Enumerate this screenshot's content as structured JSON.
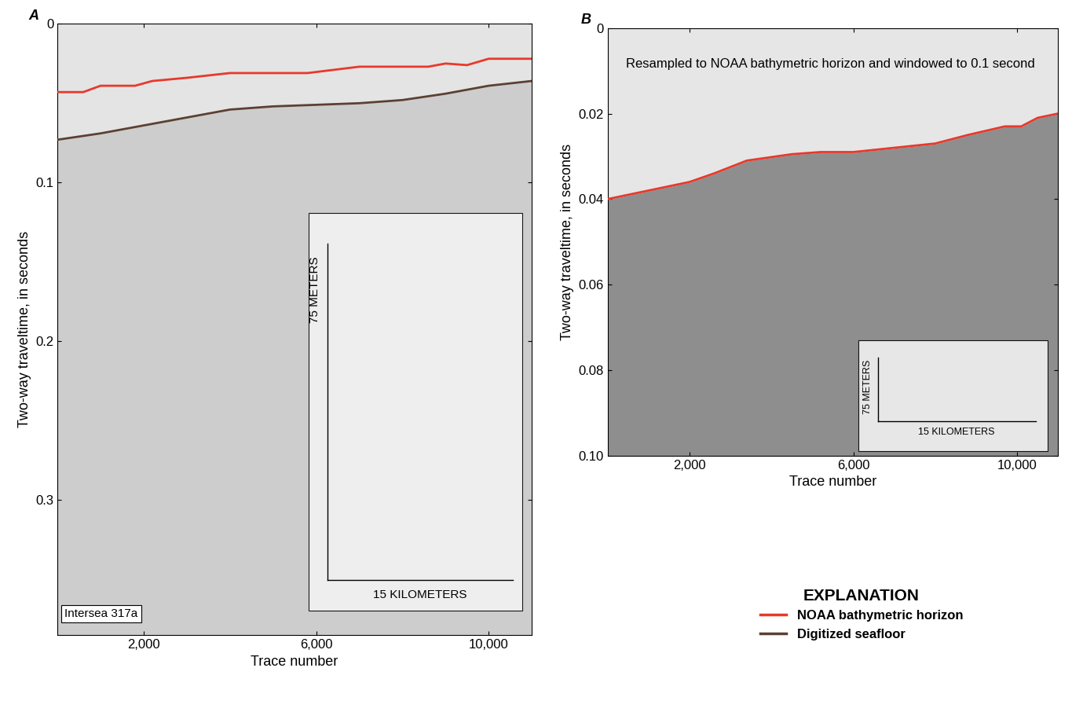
{
  "chart_data": [
    {
      "type": "line",
      "title": "A",
      "x_label": "Trace number",
      "y_label": "Two-way traveltime, in seconds",
      "xlim": [
        0,
        11000
      ],
      "ylim": [
        0.385,
        0
      ],
      "xticks": [
        {
          "value": 2000,
          "label": "2,000"
        },
        {
          "value": 6000,
          "label": "6,000"
        },
        {
          "value": 10000,
          "label": "10,000"
        }
      ],
      "yticks": [
        0,
        0.1,
        0.2,
        0.3
      ],
      "legend": "lower right",
      "annotations": [
        "Intersea 317a"
      ],
      "scale_bar": {
        "vertical": "75 METERS",
        "horizontal": "15 KILOMETERS"
      },
      "series": [
        {
          "name": "NOAA bathymetric horizon",
          "color": "#e8392b",
          "line_style": "solid",
          "x": [
            0,
            600,
            1000,
            1800,
            2200,
            3000,
            4000,
            5800,
            7000,
            8600,
            9000,
            9500,
            10000,
            11000
          ],
          "values": [
            0.043,
            0.043,
            0.039,
            0.039,
            0.036,
            0.034,
            0.031,
            0.031,
            0.027,
            0.027,
            0.025,
            0.026,
            0.022,
            0.022
          ]
        },
        {
          "name": "Digitized seafloor",
          "color": "#5c4033",
          "line_style": "solid",
          "x": [
            0,
            1000,
            2000,
            3000,
            4000,
            5000,
            6000,
            7000,
            8000,
            9000,
            10000,
            11000
          ],
          "values": [
            0.073,
            0.069,
            0.064,
            0.059,
            0.054,
            0.052,
            0.051,
            0.05,
            0.048,
            0.044,
            0.039,
            0.036
          ]
        }
      ]
    },
    {
      "type": "line",
      "title": "B",
      "x_label": "Trace number",
      "y_label": "Two-way traveltime, in seconds",
      "xlim": [
        0,
        11000
      ],
      "ylim": [
        0.1,
        0
      ],
      "xticks": [
        {
          "value": 2000,
          "label": "2,000"
        },
        {
          "value": 6000,
          "label": "6,000"
        },
        {
          "value": 10000,
          "label": "10,000"
        }
      ],
      "yticks": [
        0,
        0.02,
        0.04,
        0.06,
        0.08,
        {
          "value": 0.1,
          "label": "0.10"
        }
      ],
      "annotations": [
        "Resampled to NOAA bathymetric horizon and windowed to 0.1 second"
      ],
      "scale_bar": {
        "vertical": "75 METERS",
        "horizontal": "15 KILOMETERS"
      },
      "series": [
        {
          "name": "NOAA bathymetric horizon",
          "color": "#e8392b",
          "line_style": "solid",
          "x": [
            0,
            1000,
            2000,
            2600,
            3400,
            4500,
            5200,
            6000,
            7000,
            8000,
            8800,
            9700,
            10100,
            10500,
            11000
          ],
          "values": [
            0.04,
            0.038,
            0.036,
            0.034,
            0.031,
            0.0295,
            0.029,
            0.029,
            0.028,
            0.027,
            0.025,
            0.023,
            0.023,
            0.021,
            0.02
          ]
        }
      ]
    }
  ],
  "explanation": {
    "title": "EXPLANATION"
  }
}
